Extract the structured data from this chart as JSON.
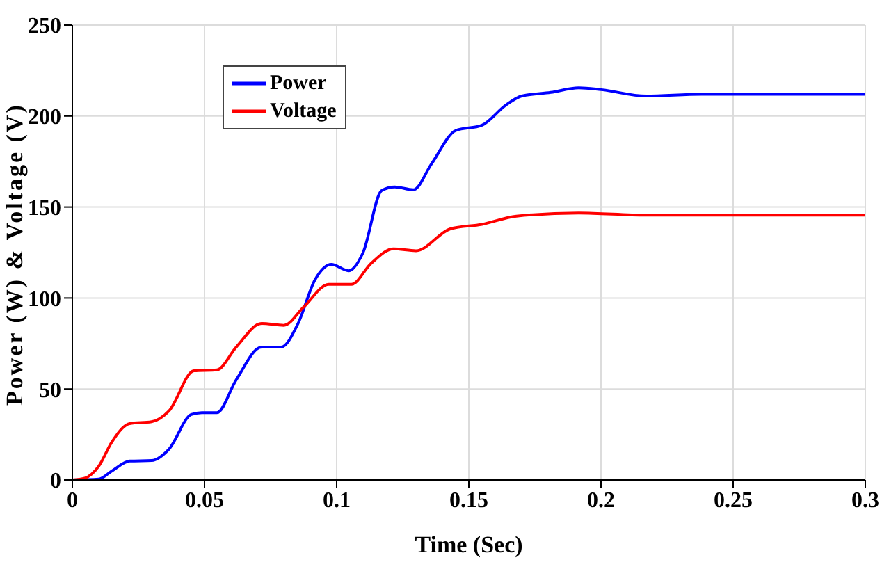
{
  "chart_data": {
    "type": "line",
    "xlabel": "Time (Sec)",
    "ylabel": "Power (W) & Voltage (V)",
    "xlim": [
      0,
      0.3
    ],
    "xticks": [
      0,
      0.05,
      0.1,
      0.15,
      0.2,
      0.25,
      0.3
    ],
    "ylim": [
      0,
      250
    ],
    "yticks": [
      0,
      50,
      100,
      150,
      200,
      250
    ],
    "grid": true,
    "legend": "top left",
    "marker": "none",
    "line_style": "solid",
    "series": [
      {
        "name": "Power",
        "color": "#0000ff",
        "x": [
          0,
          0.01,
          0.015,
          0.0217,
          0.03,
          0.0366,
          0.045,
          0.049,
          0.0547,
          0.062,
          0.0716,
          0.079,
          0.0854,
          0.0918,
          0.098,
          0.1045,
          0.11,
          0.117,
          0.122,
          0.129,
          0.136,
          0.145,
          0.155,
          0.164,
          0.17,
          0.181,
          0.1916,
          0.2,
          0.217,
          0.238,
          0.27,
          0.3
        ],
        "values": [
          0,
          0.5,
          5,
          10.4,
          10.7,
          17,
          36,
          37,
          37,
          55,
          73,
          73,
          86,
          110,
          118.5,
          115,
          125,
          159,
          161,
          159.5,
          174,
          192,
          195,
          206,
          211,
          213,
          215.5,
          214.5,
          211,
          212,
          212,
          212
        ]
      },
      {
        "name": "Voltage",
        "color": "#ff0000",
        "x": [
          0,
          0.0047,
          0.01,
          0.015,
          0.0217,
          0.03,
          0.0366,
          0.046,
          0.0547,
          0.062,
          0.0716,
          0.08,
          0.0875,
          0.097,
          0.1056,
          0.113,
          0.1215,
          0.13,
          0.143,
          0.155,
          0.168,
          0.1916,
          0.217,
          0.3
        ],
        "values": [
          0,
          1,
          7.6,
          21,
          31,
          32,
          38,
          60,
          60.5,
          73,
          86,
          85,
          95,
          107.5,
          107.5,
          119,
          127,
          126,
          138,
          140.5,
          145,
          146.7,
          145.5,
          145.5
        ]
      }
    ]
  }
}
